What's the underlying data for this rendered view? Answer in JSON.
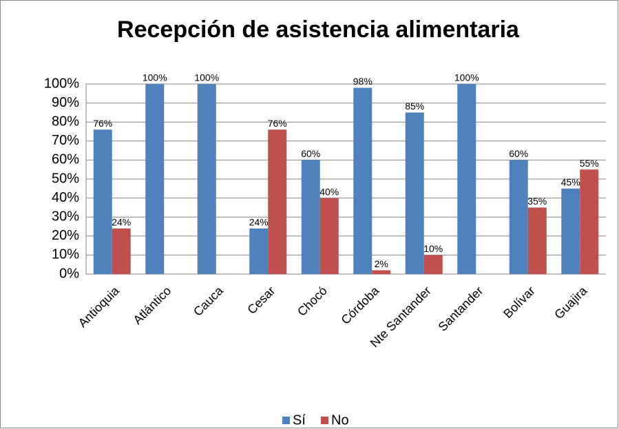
{
  "chart_data": {
    "type": "bar",
    "title": "Recepción de asistencia alimentaria",
    "categories": [
      "Antioquia",
      "Atlántico",
      "Cauca",
      "Cesar",
      "Chocó",
      "Córdoba",
      "Nte Santander",
      "Santander",
      "Bolívar",
      "Guajira"
    ],
    "series": [
      {
        "name": "Sí",
        "color": "#4f81bd",
        "values": [
          76,
          100,
          100,
          24,
          60,
          98,
          85,
          100,
          60,
          45
        ],
        "value_labels": [
          "76%",
          "100%",
          "100%",
          "24%",
          "60%",
          "98%",
          "85%",
          "100%",
          "60%",
          "45%"
        ]
      },
      {
        "name": "No",
        "color": "#c0504d",
        "values": [
          24,
          null,
          null,
          76,
          40,
          2,
          10,
          null,
          35,
          55
        ],
        "value_labels": [
          "24%",
          null,
          null,
          "76%",
          "40%",
          "2%",
          "10%",
          null,
          "35%",
          "55%"
        ]
      }
    ],
    "ylim": [
      0,
      100
    ],
    "yticks": [
      {
        "value": 0,
        "label": "0%"
      },
      {
        "value": 10,
        "label": "10%"
      },
      {
        "value": 20,
        "label": "20%"
      },
      {
        "value": 30,
        "label": "30%"
      },
      {
        "value": 40,
        "label": "40%"
      },
      {
        "value": 50,
        "label": "50%"
      },
      {
        "value": 60,
        "label": "60%"
      },
      {
        "value": 70,
        "label": "70%"
      },
      {
        "value": 80,
        "label": "80%"
      },
      {
        "value": 90,
        "label": "90%"
      },
      {
        "value": 100,
        "label": "100%"
      }
    ],
    "grid": true,
    "legend": "bottom"
  }
}
